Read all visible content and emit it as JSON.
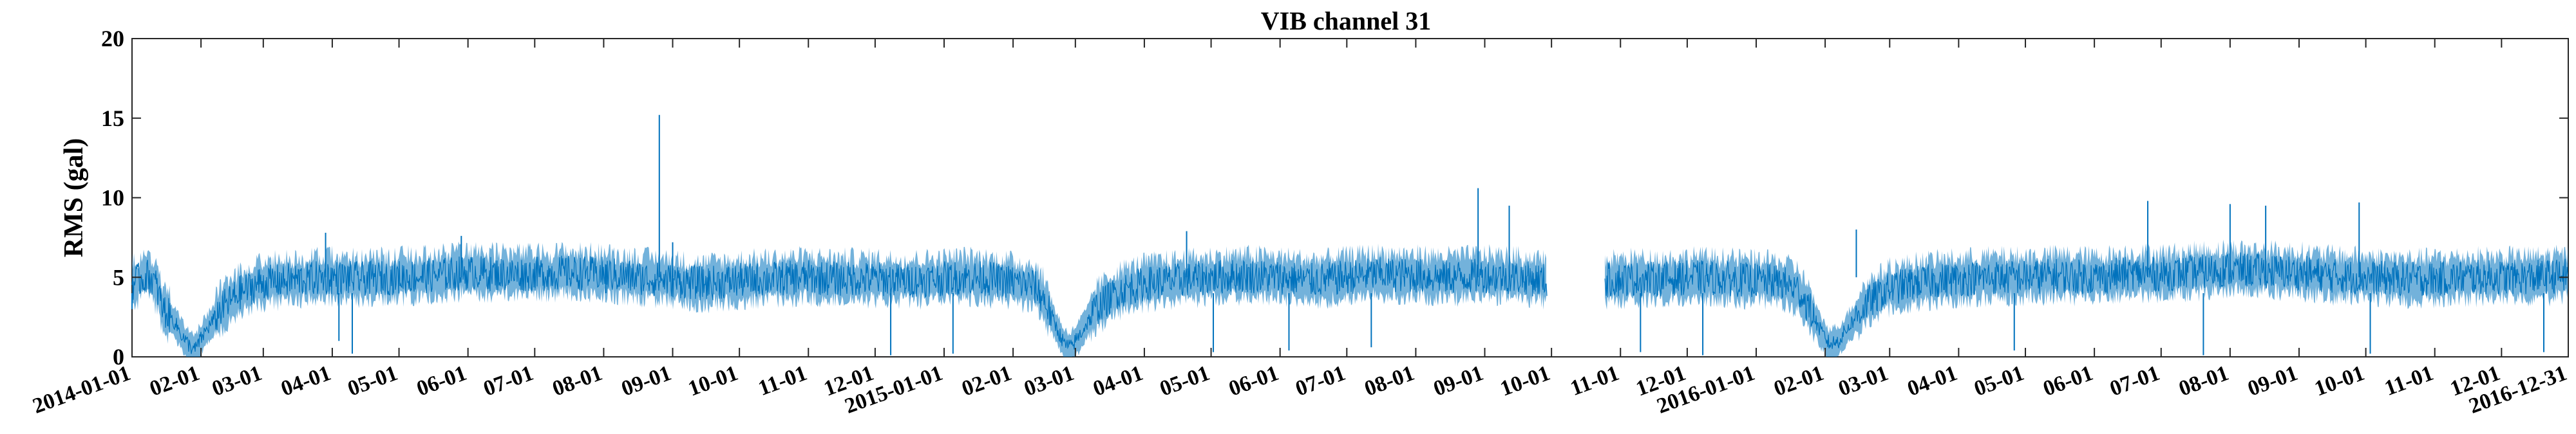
{
  "chart_data": {
    "type": "line",
    "title": "VIB channel 31",
    "ylabel": "RMS (gal)",
    "xlabel": "",
    "ylim": [
      0,
      20
    ],
    "yticks": [
      0,
      5,
      10,
      15,
      20
    ],
    "xlim": [
      "2014-01-01",
      "2016-12-31"
    ],
    "grid": false,
    "line_color": "#0072BD",
    "x_tick_dates": [
      "2014-01-01",
      "2014-02-01",
      "2014-03-01",
      "2014-04-01",
      "2014-05-01",
      "2014-06-01",
      "2014-07-01",
      "2014-08-01",
      "2014-09-01",
      "2014-10-01",
      "2014-11-01",
      "2014-12-01",
      "2015-01-01",
      "2015-02-01",
      "2015-03-01",
      "2015-04-01",
      "2015-05-01",
      "2015-06-01",
      "2015-07-01",
      "2015-08-01",
      "2015-09-01",
      "2015-10-01",
      "2015-11-01",
      "2015-12-01",
      "2016-01-01",
      "2016-02-01",
      "2016-03-01",
      "2016-04-01",
      "2016-05-01",
      "2016-06-01",
      "2016-07-01",
      "2016-08-01",
      "2016-09-01",
      "2016-10-01",
      "2016-11-01",
      "2016-12-01",
      "2016-12-31"
    ],
    "x_tick_labels": [
      "2014-01-01",
      "02-01",
      "03-01",
      "04-01",
      "05-01",
      "06-01",
      "07-01",
      "08-01",
      "09-01",
      "10-01",
      "11-01",
      "12-01",
      "2015-01-01",
      "02-01",
      "03-01",
      "04-01",
      "05-01",
      "06-01",
      "07-01",
      "08-01",
      "09-01",
      "10-01",
      "11-01",
      "12-01",
      "2016-01-01",
      "02-01",
      "03-01",
      "04-01",
      "05-01",
      "06-01",
      "07-01",
      "08-01",
      "09-01",
      "10-01",
      "11-01",
      "12-01",
      "2016-12-31"
    ],
    "series": [
      {
        "points": [
          [
            "2014-01-01",
            4.6
          ],
          [
            "2014-01-05",
            4.9
          ],
          [
            "2014-01-09",
            5.1
          ],
          [
            "2014-01-12",
            4.4
          ],
          [
            "2014-01-15",
            3.0
          ],
          [
            "2014-01-20",
            2.2
          ],
          [
            "2014-01-25",
            1.0
          ],
          [
            "2014-01-29",
            0.4
          ],
          [
            "2014-02-03",
            1.6
          ],
          [
            "2014-02-10",
            3.0
          ],
          [
            "2014-02-18",
            4.0
          ],
          [
            "2014-02-27",
            4.6
          ],
          [
            "2014-03-10",
            4.8
          ],
          [
            "2014-03-22",
            4.9
          ],
          [
            "2014-04-01",
            5.0
          ],
          [
            "2014-04-15",
            4.9
          ],
          [
            "2014-05-01",
            5.0
          ],
          [
            "2014-05-15",
            5.1
          ],
          [
            "2014-06-01",
            5.3
          ],
          [
            "2014-06-15",
            5.2
          ],
          [
            "2014-07-01",
            5.2
          ],
          [
            "2014-07-15",
            5.3
          ],
          [
            "2014-08-01",
            5.2
          ],
          [
            "2014-08-15",
            5.0
          ],
          [
            "2014-09-01",
            4.8
          ],
          [
            "2014-09-15",
            4.6
          ],
          [
            "2014-10-01",
            4.8
          ],
          [
            "2014-10-15",
            4.9
          ],
          [
            "2014-11-01",
            5.0
          ],
          [
            "2014-11-15",
            4.9
          ],
          [
            "2014-12-01",
            4.9
          ],
          [
            "2014-12-15",
            4.8
          ],
          [
            "2014-12-31",
            4.9
          ],
          [
            "2015-01-10",
            5.0
          ],
          [
            "2015-01-22",
            4.9
          ],
          [
            "2015-02-01",
            4.7
          ],
          [
            "2015-02-10",
            4.5
          ],
          [
            "2015-02-15",
            3.6
          ],
          [
            "2015-02-20",
            2.0
          ],
          [
            "2015-02-24",
            0.8
          ],
          [
            "2015-02-27",
            0.6
          ],
          [
            "2015-03-04",
            1.6
          ],
          [
            "2015-03-10",
            3.0
          ],
          [
            "2015-03-20",
            4.1
          ],
          [
            "2015-04-01",
            4.6
          ],
          [
            "2015-04-15",
            4.8
          ],
          [
            "2015-05-01",
            5.0
          ],
          [
            "2015-05-15",
            5.1
          ],
          [
            "2015-06-01",
            5.0
          ],
          [
            "2015-06-15",
            4.8
          ],
          [
            "2015-07-01",
            5.0
          ],
          [
            "2015-07-15",
            5.2
          ],
          [
            "2015-08-01",
            5.1
          ],
          [
            "2015-08-15",
            5.0
          ],
          [
            "2015-09-01",
            5.1
          ],
          [
            "2015-09-15",
            5.0
          ],
          [
            "2015-09-29",
            4.8
          ]
        ]
      },
      {
        "points": [
          [
            "2015-10-25",
            4.8
          ],
          [
            "2015-11-05",
            4.9
          ],
          [
            "2015-11-20",
            4.9
          ],
          [
            "2015-12-05",
            5.0
          ],
          [
            "2015-12-20",
            4.9
          ],
          [
            "2016-01-01",
            4.8
          ],
          [
            "2016-01-12",
            4.7
          ],
          [
            "2016-01-20",
            4.2
          ],
          [
            "2016-01-25",
            3.0
          ],
          [
            "2016-01-30",
            1.6
          ],
          [
            "2016-02-03",
            0.8
          ],
          [
            "2016-02-07",
            1.0
          ],
          [
            "2016-02-12",
            2.0
          ],
          [
            "2016-02-20",
            3.4
          ],
          [
            "2016-03-01",
            4.3
          ],
          [
            "2016-03-15",
            4.7
          ],
          [
            "2016-04-01",
            4.9
          ],
          [
            "2016-04-15",
            5.0
          ],
          [
            "2016-05-01",
            5.0
          ],
          [
            "2016-05-15",
            5.1
          ],
          [
            "2016-06-01",
            5.0
          ],
          [
            "2016-06-15",
            5.2
          ],
          [
            "2016-07-01",
            5.2
          ],
          [
            "2016-07-15",
            5.3
          ],
          [
            "2016-08-01",
            5.5
          ],
          [
            "2016-08-15",
            5.4
          ],
          [
            "2016-09-01",
            5.3
          ],
          [
            "2016-09-15",
            5.1
          ],
          [
            "2016-10-01",
            5.0
          ],
          [
            "2016-10-15",
            4.9
          ],
          [
            "2016-11-01",
            4.9
          ],
          [
            "2016-11-15",
            5.0
          ],
          [
            "2016-12-01",
            5.0
          ],
          [
            "2016-12-15",
            5.0
          ],
          [
            "2016-12-31",
            5.1
          ]
        ]
      }
    ],
    "spikes": [
      [
        "2014-01-01",
        3.0
      ],
      [
        "2014-03-29",
        7.8
      ],
      [
        "2014-04-04",
        1.0
      ],
      [
        "2014-04-10",
        0.2
      ],
      [
        "2014-05-29",
        7.6
      ],
      [
        "2014-08-02",
        5.8
      ],
      [
        "2014-08-26",
        15.2
      ],
      [
        "2014-09-01",
        7.2
      ],
      [
        "2014-12-08",
        0.1
      ],
      [
        "2015-01-05",
        0.2
      ],
      [
        "2015-04-20",
        7.9
      ],
      [
        "2015-05-02",
        0.3
      ],
      [
        "2015-06-05",
        0.4
      ],
      [
        "2015-07-12",
        0.6
      ],
      [
        "2015-08-29",
        10.6
      ],
      [
        "2015-09-12",
        9.5
      ],
      [
        "2015-11-10",
        0.3
      ],
      [
        "2015-12-08",
        0.1
      ],
      [
        "2016-02-15",
        8.0
      ],
      [
        "2016-04-26",
        0.4
      ],
      [
        "2016-06-25",
        9.8
      ],
      [
        "2016-07-20",
        0.1
      ],
      [
        "2016-08-01",
        9.6
      ],
      [
        "2016-08-17",
        9.5
      ],
      [
        "2016-09-28",
        9.7
      ],
      [
        "2016-10-03",
        0.2
      ],
      [
        "2016-12-20",
        0.3
      ]
    ]
  }
}
